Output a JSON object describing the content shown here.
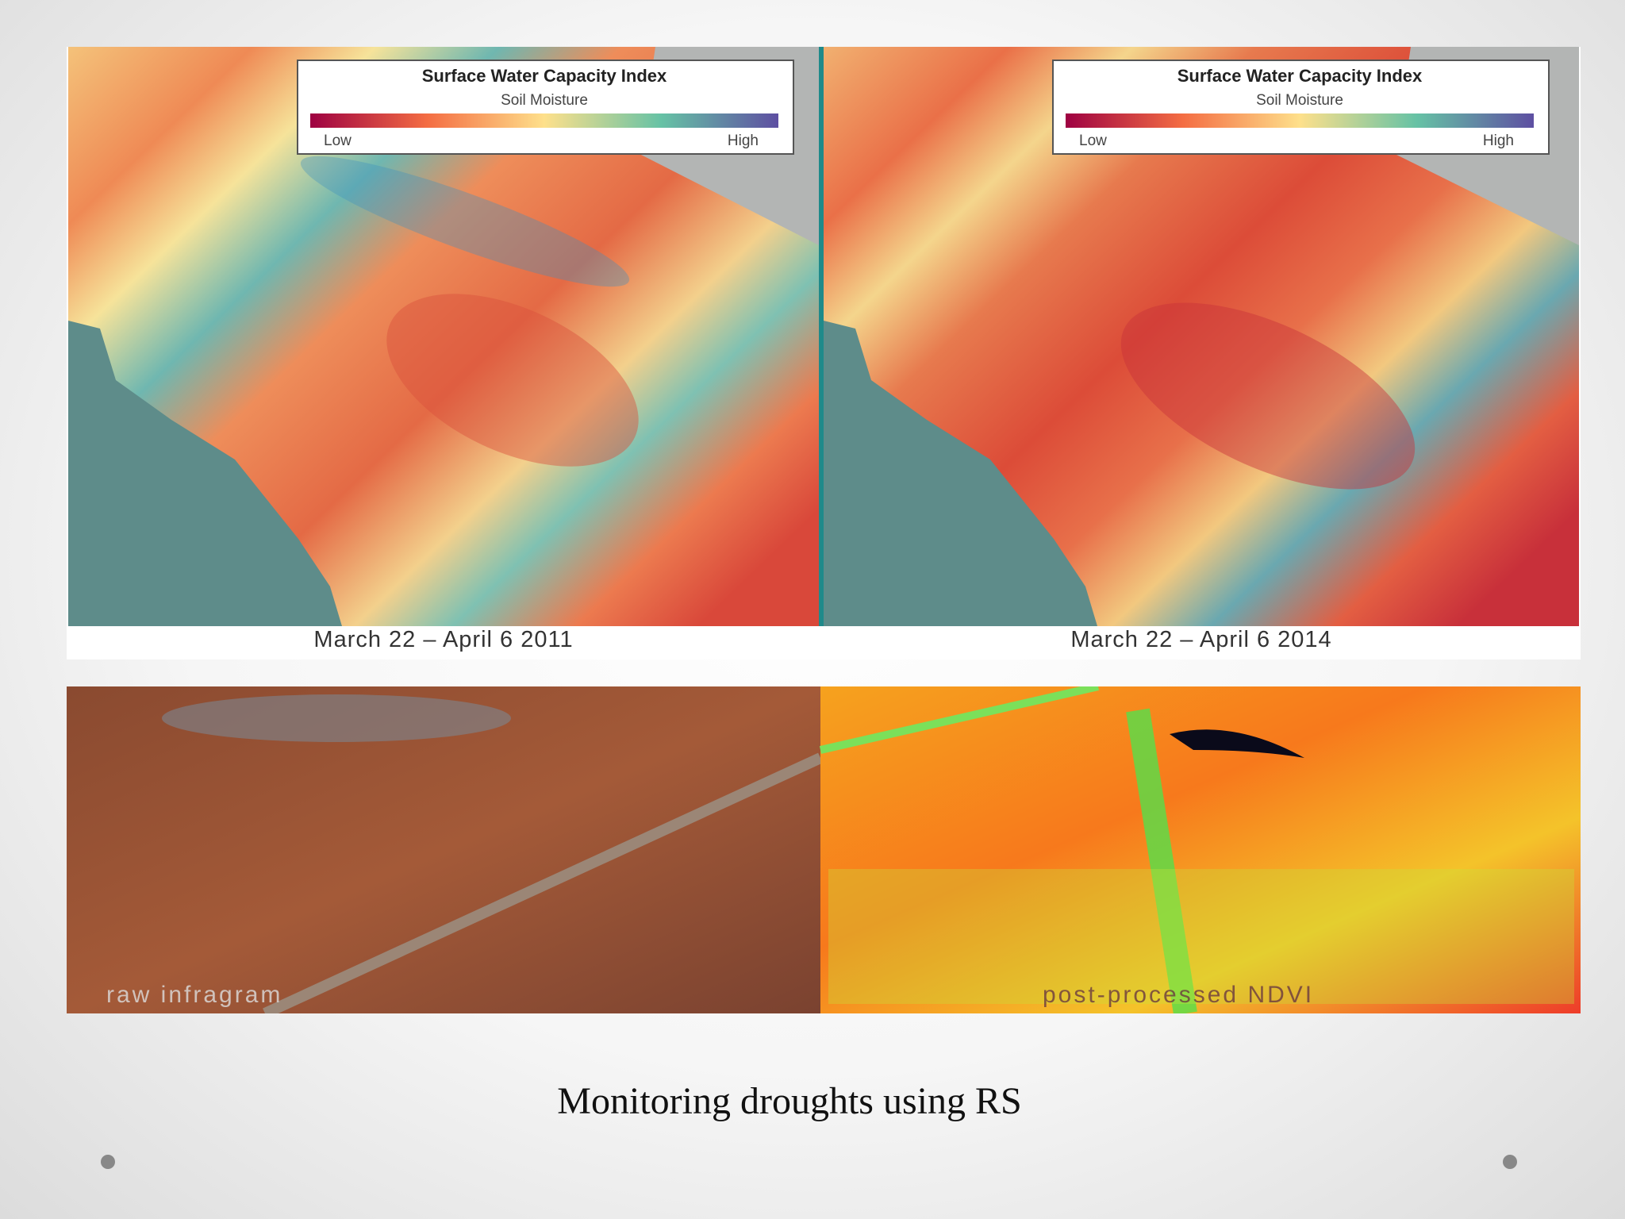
{
  "maps": [
    {
      "legend": {
        "title": "Surface Water Capacity Index",
        "subtitle": "Soil Moisture",
        "low": "Low",
        "high": "High"
      },
      "caption": "March 22 – April 6 2011"
    },
    {
      "legend": {
        "title": "Surface Water Capacity Index",
        "subtitle": "Soil Moisture",
        "low": "Low",
        "high": "High"
      },
      "caption": "March 22 – April 6 2014"
    }
  ],
  "photo": {
    "left_label": "raw infragram",
    "right_label": "post-processed NDVI"
  },
  "caption": "Monitoring droughts using RS"
}
